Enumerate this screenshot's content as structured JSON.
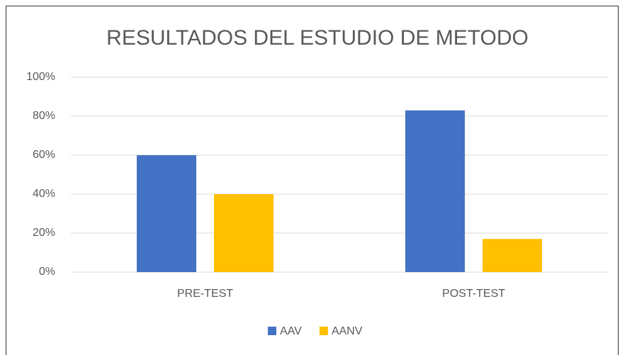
{
  "chart_data": {
    "type": "bar",
    "title": "RESULTADOS DEL ESTUDIO DE METODO",
    "categories": [
      "PRE-TEST",
      "POST-TEST"
    ],
    "series": [
      {
        "name": "AAV",
        "color": "#4472c4",
        "values": [
          60,
          83
        ]
      },
      {
        "name": "AANV",
        "color": "#ffc000",
        "values": [
          40,
          17
        ]
      }
    ],
    "ylim": [
      0,
      100
    ],
    "yticks": [
      {
        "value": 0,
        "label": "0%"
      },
      {
        "value": 20,
        "label": "20%"
      },
      {
        "value": 40,
        "label": "40%"
      },
      {
        "value": 60,
        "label": "60%"
      },
      {
        "value": 80,
        "label": "80%"
      },
      {
        "value": 100,
        "label": "100%"
      }
    ],
    "grid": true,
    "legend": "bottom"
  }
}
